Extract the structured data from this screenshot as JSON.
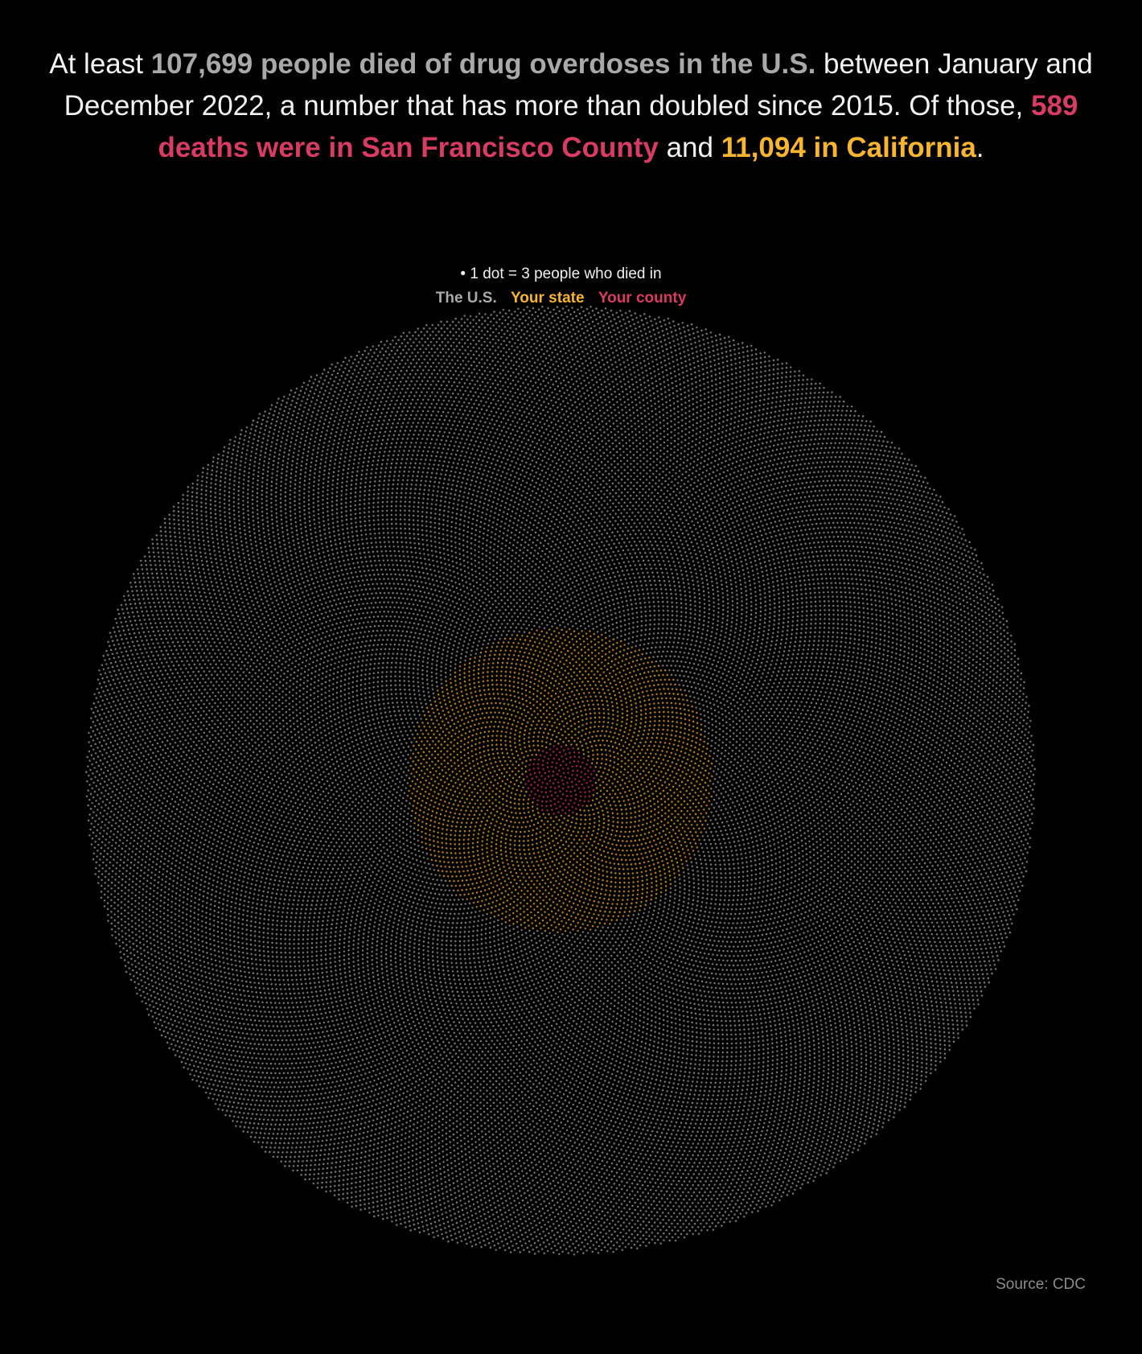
{
  "headline": {
    "p1": "At least ",
    "us_phrase": "107,699 people died of drug overdoses in the U.S.",
    "p2": " between January and December 2022, a number that has more than doubled since 2015. Of those, ",
    "county_phrase": "589 deaths were in San Francisco County",
    "p3": " and ",
    "state_phrase": "11,094 in California",
    "p4": "."
  },
  "legend": {
    "caption": "• 1 dot = 3 people who died in",
    "us_label": "The U.S.",
    "state_label": "Your state",
    "county_label": "Your county"
  },
  "source": "Source: CDC",
  "colors": {
    "background": "#000000",
    "us": "#a9a9a9",
    "state": "#f8b530",
    "county": "#d83c63"
  },
  "chart_data": {
    "type": "scatter",
    "layout": "concentric phyllotaxis spiral",
    "people_per_dot": 3,
    "series": [
      {
        "name": "The U.S.",
        "deaths": 107699,
        "dots": 35900
      },
      {
        "name": "Your state",
        "deaths": 11094,
        "dots": 3698
      },
      {
        "name": "Your county",
        "deaths": 589,
        "dots": 196
      }
    ]
  }
}
